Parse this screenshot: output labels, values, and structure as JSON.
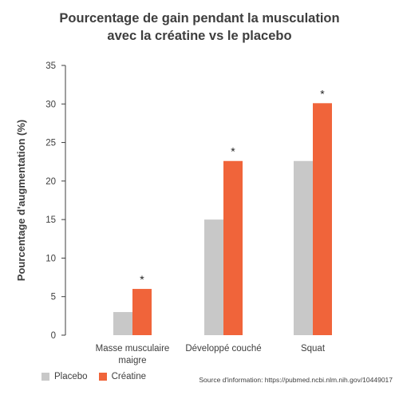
{
  "title_line1": "Pourcentage de gain pendant la musculation",
  "title_line2": "avec la créatine vs le placebo",
  "source": "Source d'information: https://pubmed.ncbi.nlm.nih.gov/10449017",
  "colors": {
    "placebo": "#c8c8c8",
    "creatine": "#f0643a",
    "axis": "#3e3e3e",
    "text": "#3e3e3e"
  },
  "chart_data": {
    "type": "bar",
    "title": "Pourcentage de gain pendant la musculation avec la créatine vs le placebo",
    "ylabel": "Pourcentage d'augmentation (%)",
    "xlabel": "",
    "ylim": [
      0,
      35
    ],
    "yticks": [
      0,
      5,
      10,
      15,
      20,
      25,
      30,
      35
    ],
    "categories": [
      [
        "Masse musculaire",
        "maigre"
      ],
      [
        "Développé couché"
      ],
      [
        "Squat"
      ]
    ],
    "series": [
      {
        "name": "Placebo",
        "values": [
          3.0,
          15.0,
          22.6
        ],
        "color": "#c8c8c8"
      },
      {
        "name": "Créatine",
        "values": [
          6.0,
          22.6,
          30.1
        ],
        "color": "#f0643a"
      }
    ],
    "annotations": [
      "*",
      "*",
      "*"
    ],
    "legend": "bottom-left",
    "grid": false
  }
}
